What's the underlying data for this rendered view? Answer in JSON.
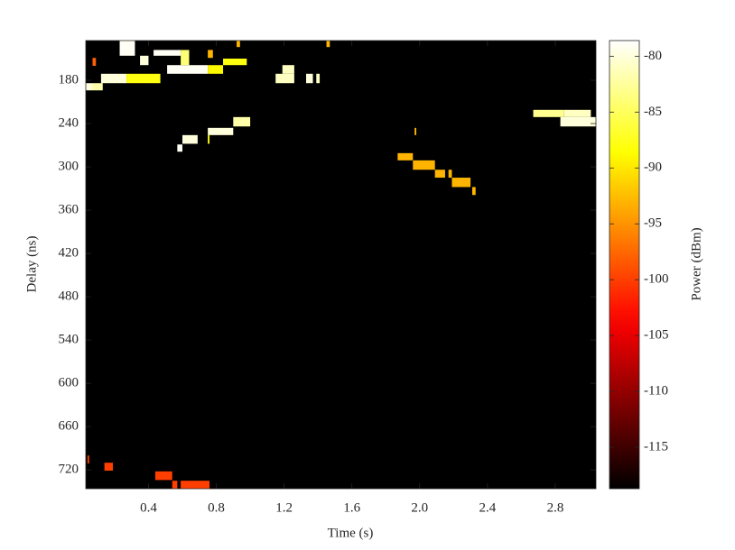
{
  "chart_data": {
    "type": "heatmap",
    "xlabel": "Time (s)",
    "ylabel": "Delay (ns)",
    "colorbar_label": "Power (dBm)",
    "colormap": "hot",
    "background": -118.7,
    "xlim": [
      0.03,
      3.04
    ],
    "ylim": [
      125,
      746
    ],
    "y_reversed": true,
    "clim": [
      -118.7,
      -78.6
    ],
    "xticks": [
      0.4,
      0.8,
      1.2,
      1.6,
      {
        "value": 2,
        "label": "2.0"
      },
      2.4,
      2.8
    ],
    "yticks": [
      180,
      240,
      300,
      360,
      420,
      480,
      540,
      600,
      660,
      720
    ],
    "cticks": [
      -80,
      -85,
      -90,
      -95,
      -100,
      -105,
      -110,
      -115
    ],
    "patches": [
      {
        "x": [
          0.23,
          0.32
        ],
        "y": [
          125,
          146
        ],
        "value": -79
      },
      {
        "x": [
          0.43,
          0.59
        ],
        "y": [
          138,
          146
        ],
        "value": -79
      },
      {
        "x": [
          0.35,
          0.4
        ],
        "y": [
          146,
          159
        ],
        "value": -80
      },
      {
        "x": [
          0.51,
          0.75
        ],
        "y": [
          159,
          171
        ],
        "value": -79
      },
      {
        "x": [
          0.59,
          0.64
        ],
        "y": [
          138,
          159
        ],
        "value": -84
      },
      {
        "x": [
          0.75,
          0.84
        ],
        "y": [
          159,
          171
        ],
        "value": -89
      },
      {
        "x": [
          0.84,
          0.98
        ],
        "y": [
          150,
          159
        ],
        "value": -88
      },
      {
        "x": [
          0.12,
          0.27
        ],
        "y": [
          171,
          184
        ],
        "value": -80
      },
      {
        "x": [
          0.27,
          0.47
        ],
        "y": [
          171,
          184
        ],
        "value": -88
      },
      {
        "x": [
          0.03,
          0.07
        ],
        "y": [
          184,
          194
        ],
        "value": -80
      },
      {
        "x": [
          0.07,
          0.13
        ],
        "y": [
          184,
          194
        ],
        "value": -82
      },
      {
        "x": [
          1.19,
          1.26
        ],
        "y": [
          159,
          171
        ],
        "value": -81
      },
      {
        "x": [
          1.15,
          1.26
        ],
        "y": [
          171,
          184
        ],
        "value": -81
      },
      {
        "x": [
          1.33,
          1.37
        ],
        "y": [
          171,
          184
        ],
        "value": -80
      },
      {
        "x": [
          1.39,
          1.41
        ],
        "y": [
          171,
          184
        ],
        "value": -81
      },
      {
        "x": [
          0.75,
          0.78
        ],
        "y": [
          138,
          149
        ],
        "value": -93
      },
      {
        "x": [
          0.92,
          0.94
        ],
        "y": [
          125,
          134
        ],
        "value": -93
      },
      {
        "x": [
          1.45,
          1.47
        ],
        "y": [
          125,
          134
        ],
        "value": -93
      },
      {
        "x": [
          0.07,
          0.09
        ],
        "y": [
          149,
          160
        ],
        "value": -98
      },
      {
        "x": [
          0.9,
          1.0
        ],
        "y": [
          231,
          244
        ],
        "value": -82
      },
      {
        "x": [
          0.75,
          0.9
        ],
        "y": [
          246,
          256
        ],
        "value": -80
      },
      {
        "x": [
          0.6,
          0.69
        ],
        "y": [
          256,
          268
        ],
        "value": -80
      },
      {
        "x": [
          0.57,
          0.6
        ],
        "y": [
          269,
          279
        ],
        "value": -79
      },
      {
        "x": [
          0.75,
          0.76
        ],
        "y": [
          256,
          268
        ],
        "value": -88
      },
      {
        "x": [
          2.67,
          2.85
        ],
        "y": [
          221,
          231
        ],
        "value": -83
      },
      {
        "x": [
          2.85,
          3.01
        ],
        "y": [
          221,
          231
        ],
        "value": -81
      },
      {
        "x": [
          2.83,
          3.04
        ],
        "y": [
          231,
          244
        ],
        "value": -80
      },
      {
        "x": [
          1.97,
          1.98
        ],
        "y": [
          246,
          256
        ],
        "value": -93
      },
      {
        "x": [
          1.87,
          1.96
        ],
        "y": [
          281,
          291
        ],
        "value": -93
      },
      {
        "x": [
          1.96,
          2.09
        ],
        "y": [
          291,
          304
        ],
        "value": -93
      },
      {
        "x": [
          2.09,
          2.15
        ],
        "y": [
          304,
          315
        ],
        "value": -93
      },
      {
        "x": [
          2.17,
          2.19
        ],
        "y": [
          304,
          315
        ],
        "value": -93
      },
      {
        "x": [
          2.19,
          2.3
        ],
        "y": [
          315,
          328
        ],
        "value": -93
      },
      {
        "x": [
          2.31,
          2.33
        ],
        "y": [
          328,
          339
        ],
        "value": -93
      },
      {
        "x": [
          0.04,
          0.05
        ],
        "y": [
          700,
          711
        ],
        "value": -100
      },
      {
        "x": [
          0.14,
          0.19
        ],
        "y": [
          710,
          721
        ],
        "value": -100
      },
      {
        "x": [
          0.44,
          0.54
        ],
        "y": [
          722,
          734
        ],
        "value": -100
      },
      {
        "x": [
          0.54,
          0.57
        ],
        "y": [
          735,
          746
        ],
        "value": -100
      },
      {
        "x": [
          0.59,
          0.76
        ],
        "y": [
          735,
          746
        ],
        "value": -100
      }
    ]
  }
}
